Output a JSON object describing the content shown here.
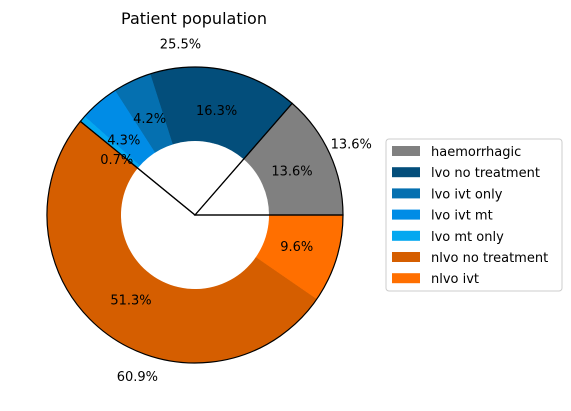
{
  "chart_data": {
    "type": "pie",
    "title": "Patient population",
    "legend_position": "right",
    "slices": [
      {
        "name": "haemorrhagic",
        "value": 13.6,
        "color": "#808080"
      },
      {
        "name": "lvo no treatment",
        "value": 16.3,
        "color": "#034e7b"
      },
      {
        "name": "lvo ivt only",
        "value": 4.2,
        "color": "#0570b0"
      },
      {
        "name": "lvo ivt mt",
        "value": 4.3,
        "color": "#008ce6"
      },
      {
        "name": "lvo mt only",
        "value": 0.7,
        "color": "#04a8f0"
      },
      {
        "name": "nlvo no treatment",
        "value": 51.3,
        "color": "#d55e00"
      },
      {
        "name": "nlvo ivt",
        "value": 9.6,
        "color": "#ff6f00"
      }
    ],
    "slice_labels": [
      "13.6%",
      "16.3%",
      "4.2%",
      "4.3%",
      "0.7%",
      "51.3%",
      "9.6%"
    ],
    "group_labels": [
      {
        "text": "13.6%",
        "group": "haemorrhagic",
        "value": 13.6
      },
      {
        "text": "25.5%",
        "group": "lvo",
        "value": 25.5
      },
      {
        "text": "60.9%",
        "group": "nlvo",
        "value": 60.9
      }
    ]
  }
}
